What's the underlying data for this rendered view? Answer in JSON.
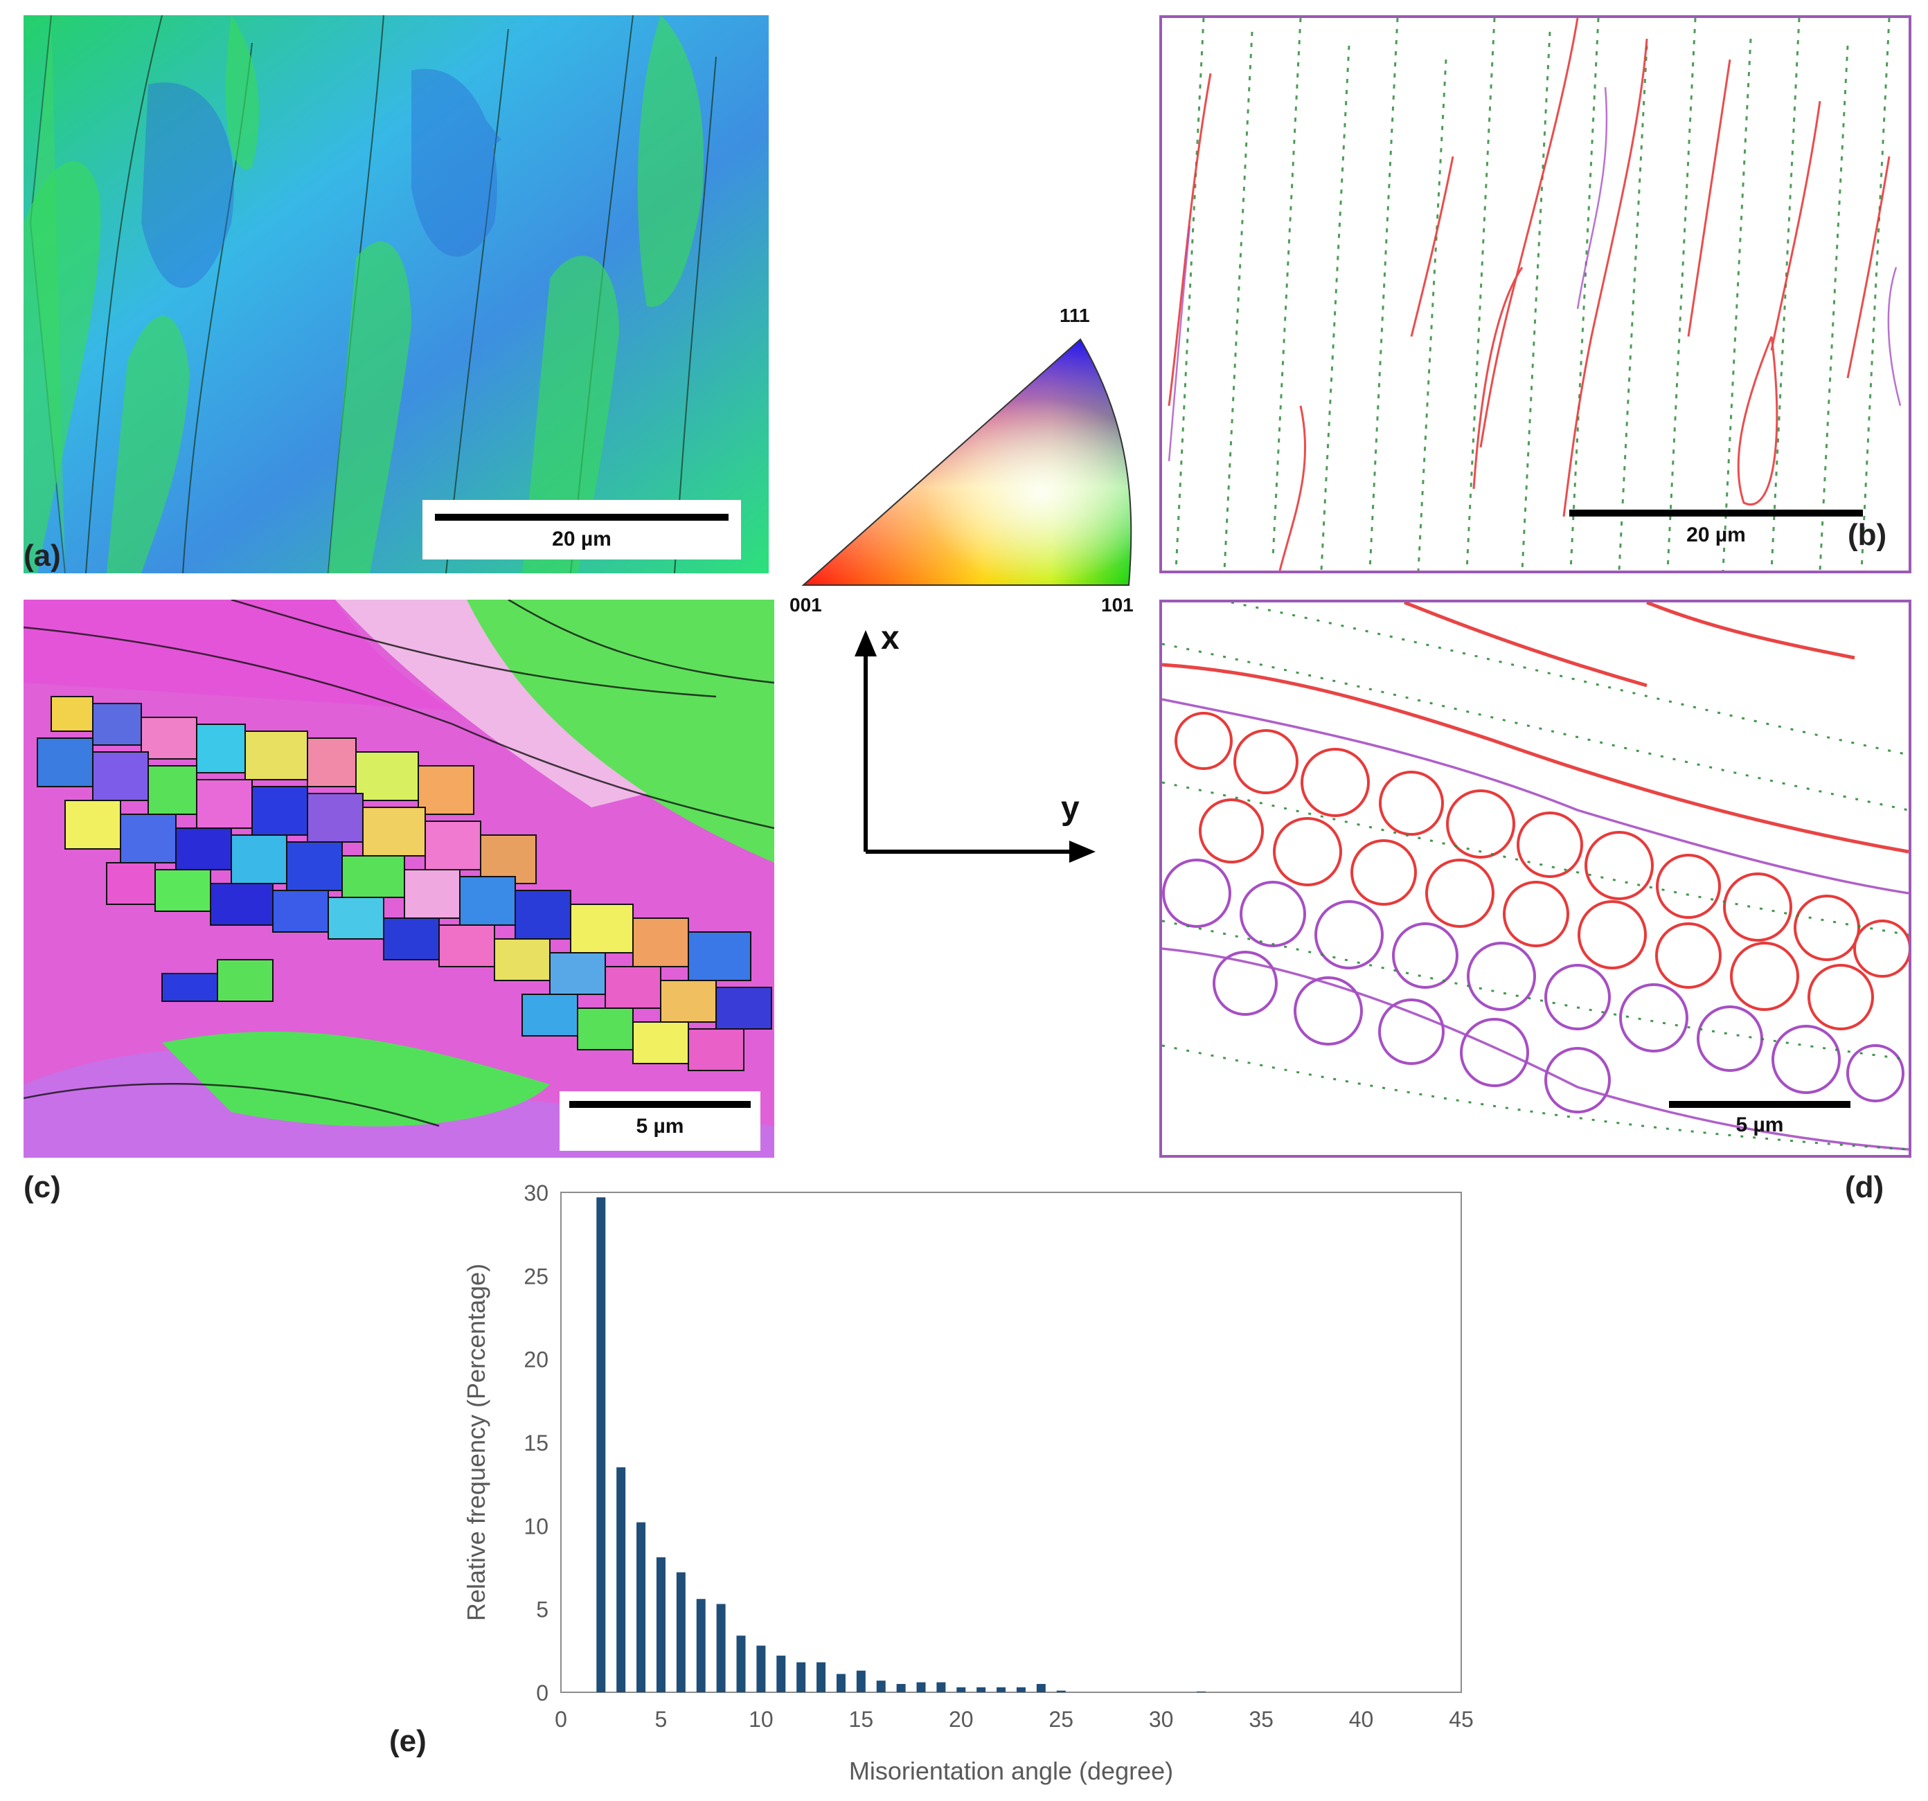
{
  "panels": {
    "a": {
      "label": "(a)",
      "scale": "20 µm"
    },
    "b": {
      "label": "(b)",
      "scale": "20 µm"
    },
    "c": {
      "label": "(c)",
      "scale": "5 µm"
    },
    "d": {
      "label": "(d)",
      "scale": "5 µm"
    },
    "e": {
      "label": "(e)"
    }
  },
  "ipf": {
    "top": "111",
    "left": "001",
    "right": "101"
  },
  "axes": {
    "x": "x",
    "y": "y"
  },
  "colors": {
    "high_angle_boundary": "#e83a3a",
    "low_angle_boundary": "#2e8b3a",
    "twin_boundary": "#a64fc4",
    "bar": "#1f4e79",
    "panel_frame": "#9b59b6"
  },
  "chart_data": {
    "type": "bar",
    "xlabel": "Misorientation angle (degree)",
    "ylabel": "Relative frequency (Percentage)",
    "xlim": [
      0,
      45
    ],
    "ylim": [
      0,
      30
    ],
    "xticks": [
      0,
      5,
      10,
      15,
      20,
      25,
      30,
      35,
      40,
      45
    ],
    "yticks": [
      0,
      5,
      10,
      15,
      20,
      25,
      30
    ],
    "x": [
      2,
      3,
      4,
      5,
      6,
      7,
      8,
      9,
      10,
      11,
      12,
      13,
      14,
      15,
      16,
      17,
      18,
      19,
      20,
      21,
      22,
      23,
      24,
      25,
      32
    ],
    "values": [
      29.7,
      13.5,
      10.2,
      8.1,
      7.2,
      5.6,
      5.3,
      3.4,
      2.8,
      2.2,
      1.8,
      1.8,
      1.1,
      1.3,
      0.7,
      0.5,
      0.6,
      0.6,
      0.3,
      0.3,
      0.3,
      0.3,
      0.5,
      0.1,
      0.05
    ]
  }
}
